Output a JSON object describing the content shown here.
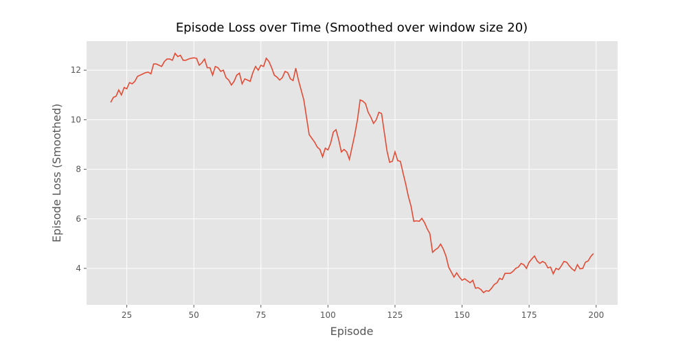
{
  "chart_data": {
    "type": "line",
    "title": "Episode Loss over Time (Smoothed over window size 20)",
    "x_label": "Episode",
    "y_label": "Episode Loss (Smoothed)",
    "x": [
      19,
      20,
      21,
      22,
      23,
      24,
      25,
      26,
      27,
      28,
      29,
      30,
      31,
      32,
      33,
      34,
      35,
      36,
      37,
      38,
      39,
      40,
      41,
      42,
      43,
      44,
      45,
      46,
      47,
      48,
      49,
      50,
      51,
      52,
      53,
      54,
      55,
      56,
      57,
      58,
      59,
      60,
      61,
      62,
      63,
      64,
      65,
      66,
      67,
      68,
      69,
      70,
      71,
      72,
      73,
      74,
      75,
      76,
      77,
      78,
      79,
      80,
      81,
      82,
      83,
      84,
      85,
      86,
      87,
      88,
      89,
      90,
      91,
      92,
      93,
      94,
      95,
      96,
      97,
      98,
      99,
      100,
      101,
      102,
      103,
      104,
      105,
      106,
      107,
      108,
      109,
      110,
      111,
      112,
      113,
      114,
      115,
      116,
      117,
      118,
      119,
      120,
      121,
      122,
      123,
      124,
      125,
      126,
      127,
      128,
      129,
      130,
      131,
      132,
      133,
      134,
      135,
      136,
      137,
      138,
      139,
      140,
      141,
      142,
      143,
      144,
      145,
      146,
      147,
      148,
      149,
      150,
      151,
      152,
      153,
      154,
      155,
      156,
      157,
      158,
      159,
      160,
      161,
      162,
      163,
      164,
      165,
      166,
      167,
      168,
      169,
      170,
      171,
      172,
      173,
      174,
      175,
      176,
      177,
      178,
      179,
      180,
      181,
      182,
      183,
      184,
      185,
      186,
      187,
      188,
      189,
      190,
      191,
      192,
      193,
      194,
      195,
      196,
      197,
      198,
      199
    ],
    "values": [
      10.7,
      10.9,
      10.95,
      11.2,
      11.0,
      11.3,
      11.25,
      11.5,
      11.45,
      11.55,
      11.75,
      11.8,
      11.85,
      11.9,
      11.92,
      11.85,
      12.25,
      12.25,
      12.2,
      12.15,
      12.35,
      12.45,
      12.45,
      12.4,
      12.68,
      12.55,
      12.6,
      12.4,
      12.4,
      12.45,
      12.48,
      12.5,
      12.48,
      12.2,
      12.3,
      12.45,
      12.1,
      12.1,
      11.8,
      12.15,
      12.1,
      11.95,
      12.0,
      11.7,
      11.6,
      11.4,
      11.55,
      11.8,
      11.88,
      11.45,
      11.65,
      11.6,
      11.55,
      11.9,
      12.15,
      12.0,
      12.2,
      12.15,
      12.48,
      12.35,
      12.1,
      11.8,
      11.72,
      11.6,
      11.7,
      11.95,
      11.9,
      11.65,
      11.58,
      12.08,
      11.6,
      11.2,
      10.8,
      10.1,
      9.4,
      9.25,
      9.1,
      8.9,
      8.8,
      8.5,
      8.85,
      8.78,
      9.05,
      9.5,
      9.6,
      9.2,
      8.7,
      8.8,
      8.7,
      8.4,
      8.9,
      9.4,
      10.0,
      10.8,
      10.75,
      10.65,
      10.3,
      10.1,
      9.85,
      10.0,
      10.3,
      10.25,
      9.5,
      8.75,
      8.28,
      8.32,
      8.7,
      8.35,
      8.32,
      7.85,
      7.4,
      6.9,
      6.5,
      5.9,
      5.92,
      5.9,
      6.02,
      5.85,
      5.6,
      5.4,
      4.65,
      4.75,
      4.82,
      4.98,
      4.78,
      4.5,
      4.05,
      3.85,
      3.65,
      3.82,
      3.65,
      3.52,
      3.58,
      3.5,
      3.42,
      3.52,
      3.2,
      3.22,
      3.15,
      3.02,
      3.1,
      3.08,
      3.2,
      3.35,
      3.42,
      3.6,
      3.55,
      3.8,
      3.8,
      3.8,
      3.88,
      4.0,
      4.05,
      4.2,
      4.15,
      4.0,
      4.25,
      4.38,
      4.5,
      4.3,
      4.2,
      4.28,
      4.22,
      4.02,
      4.05,
      3.78,
      4.0,
      3.95,
      4.1,
      4.28,
      4.25,
      4.1,
      3.98,
      3.9,
      4.15,
      3.98,
      4.0,
      4.25,
      4.3,
      4.48,
      4.6
    ],
    "color": "#e24a33",
    "xlim": [
      10,
      208
    ],
    "xticks": [
      25,
      50,
      75,
      100,
      125,
      150,
      175,
      200
    ],
    "ylim": [
      2.53,
      13.17
    ],
    "yticks": [
      4,
      6,
      8,
      10,
      12
    ],
    "grid": true
  }
}
